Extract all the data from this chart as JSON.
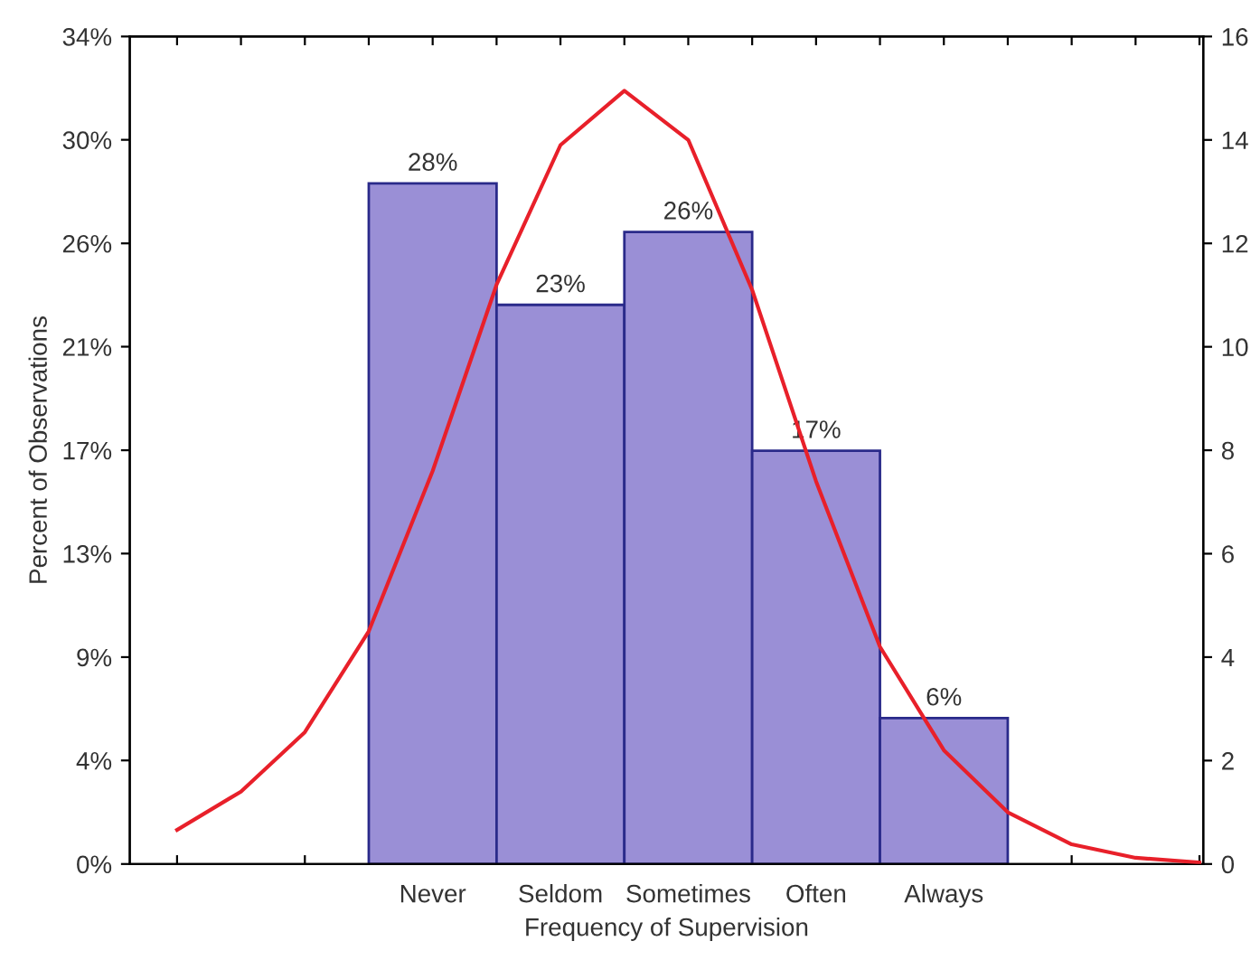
{
  "chart_data": {
    "type": "bar",
    "xlabel": "Frequency of Supervision",
    "ylabel": "Percent of Observations",
    "categories": [
      null,
      null,
      null,
      null,
      "Never",
      null,
      "Seldom",
      null,
      "Sometimes",
      null,
      "Often",
      null,
      "Always",
      null,
      null,
      null,
      null
    ],
    "ylim": [
      0,
      34.04
    ],
    "yticks": [
      {
        "value": 0,
        "label": "0%"
      },
      {
        "value": 4.26,
        "label": "4%"
      },
      {
        "value": 8.51,
        "label": "9%"
      },
      {
        "value": 12.77,
        "label": "13%"
      },
      {
        "value": 17.02,
        "label": "17%"
      },
      {
        "value": 21.28,
        "label": "21%"
      },
      {
        "value": 25.53,
        "label": "26%"
      },
      {
        "value": 29.79,
        "label": "30%"
      },
      {
        "value": 34.04,
        "label": "34%"
      }
    ],
    "y2lim": [
      0,
      16
    ],
    "y2ticks": [
      0,
      2,
      4,
      6,
      8,
      10,
      12,
      14,
      16
    ],
    "grid": false,
    "legend": false,
    "series": [
      {
        "color": "#9a8fd6",
        "values": [
          null,
          null,
          null,
          null,
          28,
          null,
          23,
          null,
          26,
          null,
          17,
          null,
          6,
          null,
          null,
          null,
          null
        ],
        "value_labels": [
          null,
          null,
          null,
          null,
          "28%",
          null,
          "23%",
          null,
          "26%",
          null,
          "17%",
          null,
          "6%",
          null,
          null,
          null,
          null
        ]
      },
      {
        "type": "line",
        "axis": "y2",
        "color": "#e8202a",
        "marker": "none",
        "line_style": "solid",
        "values": [
          0.66,
          1.4,
          2.55,
          4.5,
          7.6,
          11.2,
          13.9,
          14.95,
          14.0,
          11.1,
          7.4,
          4.2,
          2.2,
          1.0,
          0.38,
          0.12,
          0.03
        ]
      }
    ]
  }
}
